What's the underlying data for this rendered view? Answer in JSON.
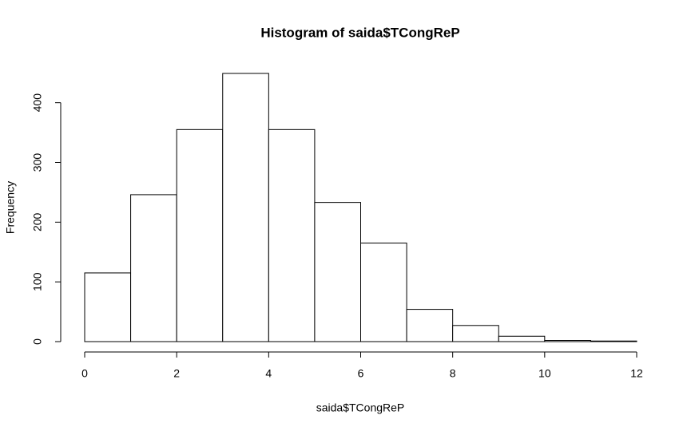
{
  "chart_data": {
    "type": "histogram",
    "title": "Histogram of saida$TCongReP",
    "x_label": "saida$TCongReP",
    "y_label": "Frequency",
    "bins": [
      0,
      1,
      2,
      3,
      4,
      5,
      6,
      7,
      8,
      9,
      10,
      11,
      12
    ],
    "values": [
      115,
      246,
      355,
      449,
      355,
      233,
      165,
      54,
      27,
      9,
      2,
      1
    ],
    "color": "#ffffff",
    "edge_color": "#000000",
    "xlim": [
      0,
      12
    ],
    "xticks": [
      0,
      2,
      4,
      6,
      8,
      10,
      12
    ],
    "ylim": [
      0,
      449
    ],
    "yticks": [
      0,
      100,
      200,
      300,
      400
    ]
  }
}
